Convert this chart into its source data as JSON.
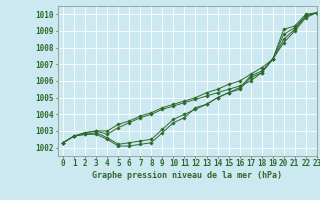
{
  "xlabel": "Graphe pression niveau de la mer (hPa)",
  "xlim": [
    -0.5,
    23
  ],
  "ylim": [
    1001.5,
    1010.5
  ],
  "yticks": [
    1002,
    1003,
    1004,
    1005,
    1006,
    1007,
    1008,
    1009,
    1010
  ],
  "xticks": [
    0,
    1,
    2,
    3,
    4,
    5,
    6,
    7,
    8,
    9,
    10,
    11,
    12,
    13,
    14,
    15,
    16,
    17,
    18,
    19,
    20,
    21,
    22,
    23
  ],
  "bg_color": "#cce8f0",
  "grid_color": "#ffffff",
  "line_color": "#2d6a2d",
  "line1": [
    1002.3,
    1002.7,
    1002.8,
    1002.8,
    1002.5,
    1002.1,
    1002.1,
    1002.2,
    1002.3,
    1002.9,
    1003.5,
    1003.8,
    1004.4,
    1004.6,
    1005.0,
    1005.3,
    1005.5,
    1006.2,
    1006.5,
    1007.3,
    1009.1,
    1009.3,
    1010.0,
    1010.1
  ],
  "line2": [
    1002.3,
    1002.7,
    1002.8,
    1002.9,
    1002.6,
    1002.2,
    1002.3,
    1002.4,
    1002.5,
    1003.1,
    1003.7,
    1004.0,
    1004.3,
    1004.6,
    1005.0,
    1005.3,
    1005.6,
    1006.3,
    1006.6,
    1007.3,
    1008.8,
    1009.2,
    1009.9,
    1010.1
  ],
  "line3": [
    1002.3,
    1002.7,
    1002.9,
    1003.0,
    1002.8,
    1003.2,
    1003.5,
    1003.8,
    1004.0,
    1004.3,
    1004.5,
    1004.7,
    1004.9,
    1005.1,
    1005.3,
    1005.5,
    1005.7,
    1006.0,
    1006.5,
    1007.3,
    1008.5,
    1009.1,
    1009.9,
    1010.1
  ],
  "line4": [
    1002.3,
    1002.7,
    1002.9,
    1003.0,
    1003.0,
    1003.4,
    1003.6,
    1003.9,
    1004.1,
    1004.4,
    1004.6,
    1004.8,
    1005.0,
    1005.3,
    1005.5,
    1005.8,
    1006.0,
    1006.4,
    1006.8,
    1007.3,
    1008.3,
    1009.0,
    1009.8,
    1010.1
  ],
  "tick_fontsize": 5.5,
  "xlabel_fontsize": 6.0
}
